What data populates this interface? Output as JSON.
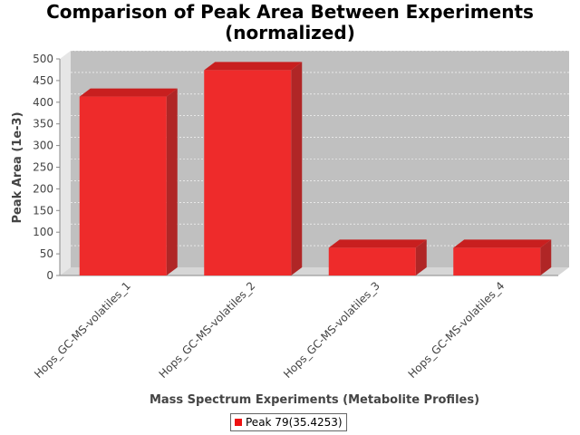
{
  "title_line1": "Comparison of Peak Area Between Experiments",
  "title_line2": "(normalized)",
  "chart_data": {
    "type": "bar",
    "title": "Comparison of Peak Area Between Experiments (normalized)",
    "xlabel": "Mass Spectrum Experiments (Metabolite Profiles)",
    "ylabel": "Peak Area (1e-3)",
    "categories": [
      "Hops_GC-MS-volatiles_1",
      "Hops_GC-MS-volatiles_2",
      "Hops_GC-MS-volatiles_3",
      "Hops_GC-MS-volatiles_4"
    ],
    "series": [
      {
        "name": "Peak 79(35.4253)",
        "values": [
          413,
          474,
          64,
          64
        ]
      }
    ],
    "ylim": [
      0,
      500
    ],
    "yticks": [
      "0",
      "50",
      "100",
      "150",
      "200",
      "250",
      "300",
      "350",
      "400",
      "450",
      "500"
    ],
    "grid": true,
    "legend": "bottom",
    "colors": {
      "bar_front": "#ee2b2b",
      "bar_top": "#c81f1f",
      "bar_side": "#b02626",
      "plot_back": "#c0c0c0",
      "plot_floor": "#d6d6d6",
      "plot_wall": "#e6e6e6"
    }
  }
}
